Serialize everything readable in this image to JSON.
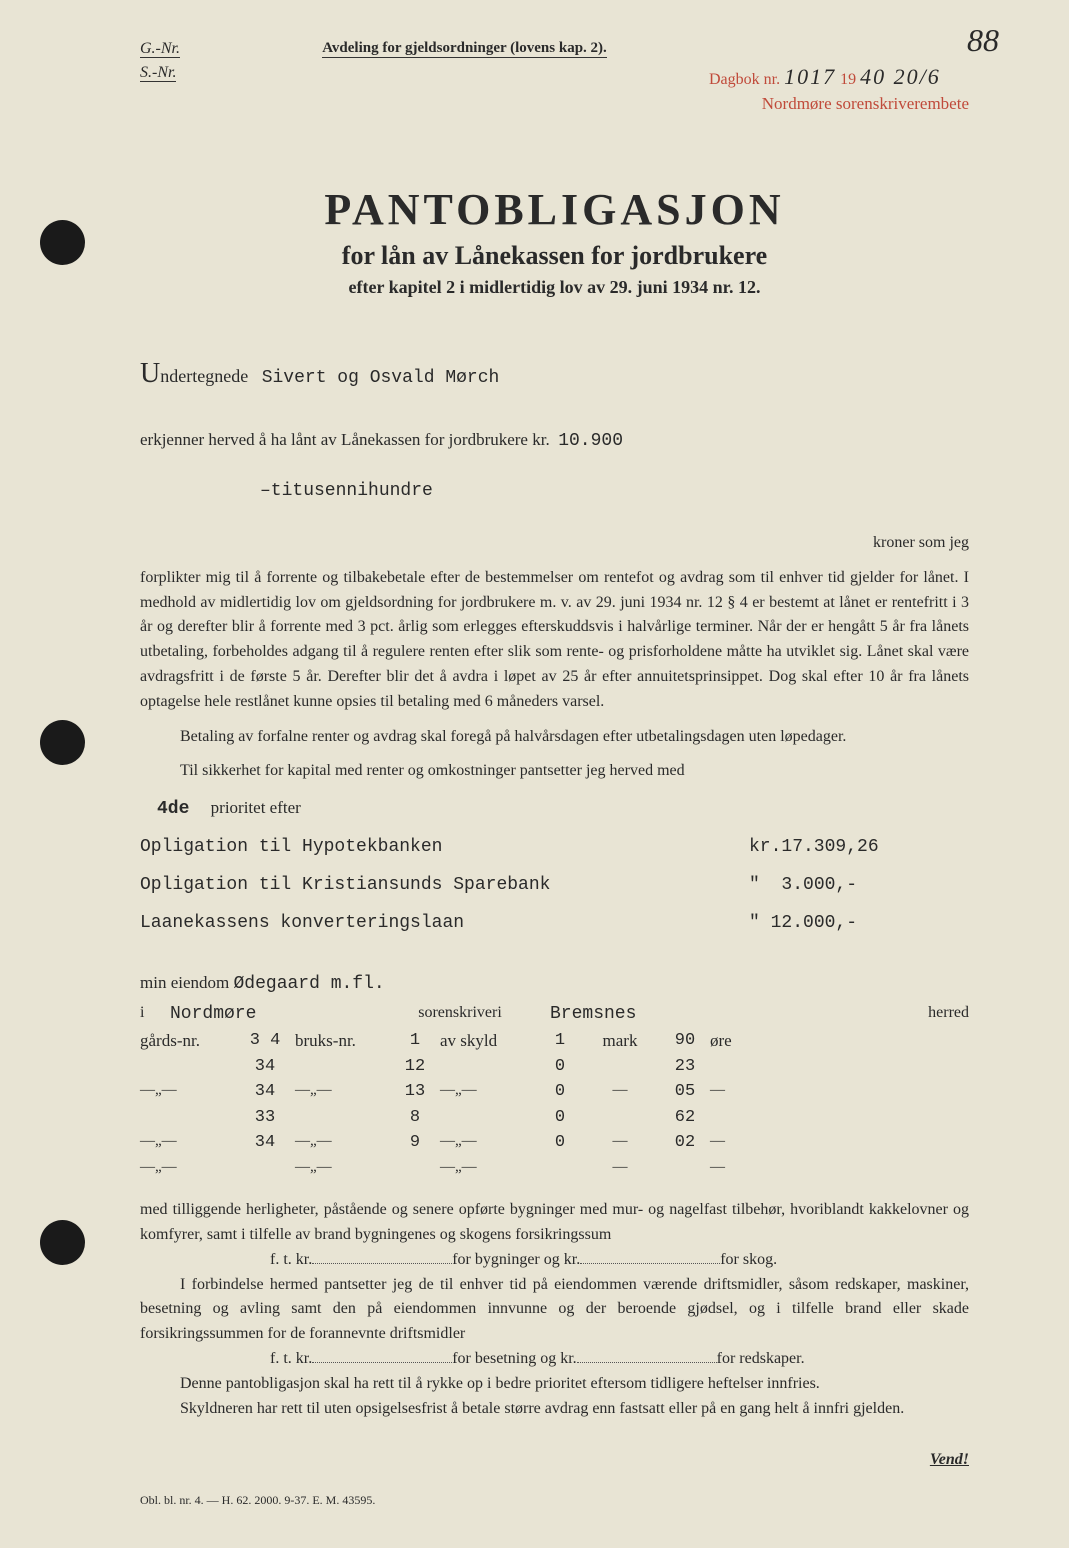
{
  "pageNumber": "88",
  "header": {
    "leftTop": "G.-Nr.",
    "leftBot": "S.-Nr.",
    "center": "Avdeling for gjeldsordninger (lovens kap. 2).",
    "dagbokLabel": "Dagbok nr.",
    "dagbokNr": "1017",
    "dagbokYearPrefix": "19",
    "dagbokDate": "40 20/6",
    "stampLine2": "Nordmøre sorenskriverembete"
  },
  "title": {
    "main": "PANTOBLIGASJON",
    "sub": "for lån av Lånekassen for jordbrukere",
    "sub2": "efter kapitel 2 i midlertidig lov av 29. juni 1934 nr. 12."
  },
  "undertegnede": {
    "label": "ndertegnede",
    "initial": "U",
    "names": "Sivert og Osvald Mørch"
  },
  "erkjenner": {
    "text": "erkjenner herved å ha lånt av Lånekassen for jordbrukere kr.",
    "amount": "10.900",
    "amountWords": "–titusennihundre"
  },
  "kronerSomJeg": "kroner som jeg",
  "bodyPara1": "forplikter mig til å forrente og tilbakebetale efter de bestemmelser om rentefot og avdrag som til enhver tid gjelder for lånet. I medhold av midlertidig lov om gjeldsordning for jordbrukere m. v. av 29. juni 1934 nr. 12 § 4 er bestemt at lånet er rentefritt i 3 år og derefter blir å forrente med 3 pct. årlig som erlegges efterskuddsvis i halvårlige terminer. Når der er hengått 5 år fra lånets utbetaling, forbeholdes adgang til å regulere renten efter slik som rente- og prisforholdene måtte ha utviklet sig. Lånet skal være avdragsfritt i de første 5 år. Derefter blir det å avdra i løpet av 25 år efter annuitetsprinsippet. Dog skal efter 10 år fra lånets optagelse hele restlånet kunne opsies til betaling med 6 måneders varsel.",
  "bodyPara2": "Betaling av forfalne renter og avdrag skal foregå på halvårsdagen efter utbetalingsdagen uten løpedager.",
  "bodyPara3": "Til sikkerhet for kapital med renter og omkostninger pantsetter jeg herved med",
  "priority": {
    "num": "4de",
    "label": "prioritet efter"
  },
  "obligations": [
    {
      "desc": "Opligation til Hypotekbanken",
      "prefix": "kr.",
      "amt": "17.309,26"
    },
    {
      "desc": "Opligation til Kristiansunds Sparebank",
      "prefix": "\"",
      "amt": "3.000,-"
    },
    {
      "desc": "Laanekassens konverteringslaan",
      "prefix": "\"",
      "amt": "12.000,-"
    }
  ],
  "eiendom": {
    "label": "min eiendom",
    "name": "Ødegaard m.fl."
  },
  "tableHead": {
    "i": "i",
    "region": "Nordmøre",
    "soren": "sorenskriveri",
    "herred": "Bremsnes",
    "herredLbl": "herred"
  },
  "parcelLabels": {
    "gard": "gårds-nr.",
    "bruk": "bruks-nr.",
    "skyld": "av skyld",
    "mark": "mark",
    "ore": "øre"
  },
  "parcels": [
    {
      "gard": "3 4",
      "bruk": "1",
      "skyld": "1",
      "mark": "90"
    },
    {
      "gard": "34",
      "bruk": "12",
      "skyld": "0",
      "mark": "23"
    },
    {
      "gard": "34",
      "bruk": "13",
      "skyld": "0",
      "mark": "05"
    },
    {
      "gard": "33",
      "bruk": "8",
      "skyld": "0",
      "mark": "62"
    },
    {
      "gard": "34",
      "bruk": "9",
      "skyld": "0",
      "mark": "02"
    }
  ],
  "block2": {
    "p1": "med tilliggende herligheter, påstående og senere opførte bygninger med mur- og nagelfast tilbehør, hvoriblandt kakkelovner og komfyrer, samt i tilfelle av brand bygningenes og skogens forsikringssum",
    "line1a": "f. t. kr.",
    "line1b": "for bygninger og kr.",
    "line1c": "for skog.",
    "p2": "I forbindelse hermed pantsetter jeg de til enhver tid på eiendommen værende driftsmidler, såsom redskaper, maskiner, besetning og avling samt den på eiendommen innvunne og der beroende gjødsel, og i tilfelle brand eller skade forsikringssummen for de forannevnte driftsmidler",
    "line2a": "f. t. kr.",
    "line2b": "for besetning og kr.",
    "line2c": "for redskaper.",
    "p3": "Denne pantobligasjon skal ha rett til å rykke op i bedre prioritet eftersom tidligere heftelser innfries.",
    "p4": "Skyldneren har rett til uten opsigelsesfrist å betale større avdrag enn fastsatt eller på en gang helt å innfri gjelden."
  },
  "vend": "Vend!",
  "footerCode": "Obl. bl. nr. 4. — H. 62. 2000. 9-37. E. M. 43595."
}
